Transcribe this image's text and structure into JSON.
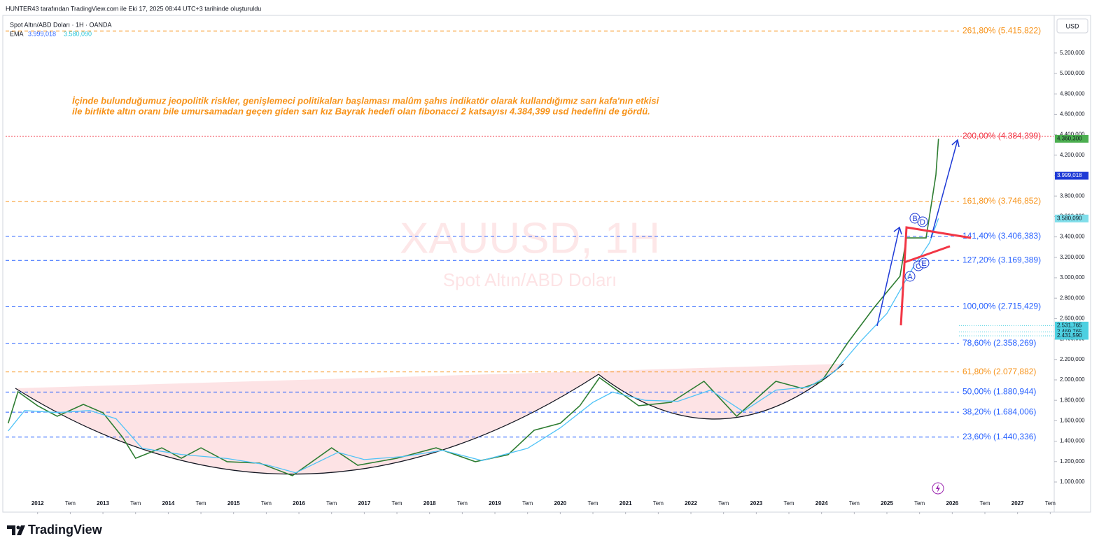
{
  "header": {
    "credit": "HUNTER43 tarafından TradingView.com ile Eki 17, 2025 08:44 UTC+3 tarihinde oluşturuldu",
    "symbol": "Spot Altın/ABD Doları · 1H · OANDA",
    "indicator": "EMA",
    "indicator_values": [
      "3.999,018",
      "3.580,090"
    ],
    "currency": "USD",
    "logo": "TradingView"
  },
  "chart_data": {
    "type": "line",
    "watermark": [
      "XAUUSD, 1H",
      "Spot Altın/ABD Doları"
    ],
    "annotation": [
      "İçinde bulunduğumuz jeopolitik riskler, genişlemeci politikaları başlaması malûm şahıs indikatör olarak kullandığımız sarı kafa'nın etkisi",
      "ile birlikte altın oranı bile umursamadan geçen giden sarı kız Bayrak hedefi olan fibonacci 2 katsayısı 4.384,399 usd hedefini de gördü."
    ],
    "pattern_labels": [
      "A",
      "B",
      "C",
      "D",
      "E"
    ],
    "xlim": [
      2011.51,
      2027.55
    ],
    "ylim": [
      719,
      5548
    ],
    "xticks": [
      2012,
      {
        "value": 2012.5,
        "label": "Tem"
      },
      2013,
      {
        "value": 2013.5,
        "label": "Tem"
      },
      2014,
      {
        "value": 2014.5,
        "label": "Tem"
      },
      2015,
      {
        "value": 2015.5,
        "label": "Tem"
      },
      2016,
      {
        "value": 2016.5,
        "label": "Tem"
      },
      2017,
      {
        "value": 2017.5,
        "label": "Tem"
      },
      2018,
      {
        "value": 2018.5,
        "label": "Tem"
      },
      2019,
      {
        "value": 2019.5,
        "label": "Tem"
      },
      2020,
      {
        "value": 2020.5,
        "label": "Tem"
      },
      2021,
      {
        "value": 2021.5,
        "label": "Tem"
      },
      2022,
      {
        "value": 2022.5,
        "label": "Tem"
      },
      2023,
      {
        "value": 2023.5,
        "label": "Tem"
      },
      2024,
      {
        "value": 2024.5,
        "label": "Tem"
      },
      2025,
      {
        "value": 2025.5,
        "label": "Tem"
      },
      2026,
      {
        "value": 2026.5,
        "label": "Tem"
      },
      2027,
      {
        "value": 2027.5,
        "label": "Tem"
      }
    ],
    "yticks": [
      {
        "value": 1000,
        "label": "1.000,000"
      },
      {
        "value": 1200,
        "label": "1.200,000"
      },
      {
        "value": 1400,
        "label": "1.400,000"
      },
      {
        "value": 1600,
        "label": "1.600,000"
      },
      {
        "value": 1800,
        "label": "1.800,000"
      },
      {
        "value": 2000,
        "label": "2.000,000"
      },
      {
        "value": 2200,
        "label": "2.200,000"
      },
      {
        "value": 2400,
        "label": "2.400,000"
      },
      {
        "value": 2600,
        "label": "2.600,000"
      },
      {
        "value": 2800,
        "label": "2.800,000"
      },
      {
        "value": 3000,
        "label": "3.000,000"
      },
      {
        "value": 3200,
        "label": "3.200,000"
      },
      {
        "value": 3400,
        "label": "3.400,000"
      },
      {
        "value": 3600,
        "label": "3.600,000"
      },
      {
        "value": 3800,
        "label": "3.800,000"
      },
      {
        "value": 4000,
        "label": "4.000,000"
      },
      {
        "value": 4200,
        "label": "4.200,000"
      },
      {
        "value": 4400,
        "label": "4.400,000"
      },
      {
        "value": 4600,
        "label": "4.600,000"
      },
      {
        "value": 4800,
        "label": "4.800,000"
      },
      {
        "value": 5000,
        "label": "5.000,000"
      },
      {
        "value": 5200,
        "label": "5.200,000"
      }
    ],
    "series": [
      {
        "color": "#2e7d32",
        "x": [
          2011.55,
          2011.7,
          2012.0,
          2012.3,
          2012.7,
          2013.0,
          2013.3,
          2013.5,
          2013.9,
          2014.2,
          2014.5,
          2014.9,
          2015.4,
          2015.9,
          2016.5,
          2016.9,
          2017.5,
          2018.1,
          2018.7,
          2019.2,
          2019.6,
          2020.0,
          2020.3,
          2020.6,
          2021.2,
          2021.7,
          2022.2,
          2022.7,
          2023.3,
          2023.7,
          2024.0,
          2024.4,
          2024.8,
          2025.2,
          2025.3,
          2025.6,
          2025.75,
          2025.79
        ],
        "values": [
          1575,
          1884,
          1747,
          1644,
          1760,
          1678,
          1438,
          1233,
          1335,
          1233,
          1335,
          1199,
          1185,
          1062,
          1335,
          1164,
          1233,
          1335,
          1199,
          1267,
          1507,
          1575,
          1747,
          2021,
          1747,
          1781,
          1986,
          1644,
          1986,
          1918,
          1986,
          2363,
          2705,
          3014,
          3390,
          3390,
          4007,
          4360.3
        ]
      },
      {
        "color": "#4fc3f7",
        "x": [
          2011.55,
          2011.8,
          2012.3,
          2012.8,
          2013.2,
          2013.6,
          2014.2,
          2014.9,
          2015.5,
          2015.95,
          2016.6,
          2017.0,
          2017.6,
          2018.2,
          2018.8,
          2019.5,
          2020.0,
          2020.5,
          2020.8,
          2021.3,
          2021.8,
          2022.3,
          2022.8,
          2023.3,
          2023.8,
          2024.2,
          2024.6,
          2025.0,
          2025.4,
          2025.65,
          2025.79
        ],
        "values": [
          1500,
          1700,
          1680,
          1700,
          1620,
          1330,
          1270,
          1230,
          1170,
          1090,
          1290,
          1220,
          1250,
          1310,
          1210,
          1330,
          1530,
          1780,
          1880,
          1800,
          1790,
          1900,
          1690,
          1900,
          1930,
          2080,
          2380,
          2650,
          3100,
          3340,
          3580.09
        ]
      }
    ],
    "fib_levels": [
      {
        "value": 5415.822,
        "label": "261,80% (5.415,822)",
        "color": "#f7931a"
      },
      {
        "value": 4384.399,
        "label": "200,00% (4.384,399)",
        "color": "#f23645"
      },
      {
        "value": 3746.852,
        "label": "161,80% (3.746,852)",
        "color": "#f7931a"
      },
      {
        "value": 3406.383,
        "label": "141,40% (3.406,383)",
        "color": "#2962ff"
      },
      {
        "value": 3169.389,
        "label": "127,20% (3.169,389)",
        "color": "#2962ff"
      },
      {
        "value": 2715.429,
        "label": "100,00% (2.715,429)",
        "color": "#2962ff"
      },
      {
        "value": 2358.269,
        "label": "78,60% (2.358,269)",
        "color": "#2962ff"
      },
      {
        "value": 2077.882,
        "label": "61,80% (2.077,882)",
        "color": "#f7931a"
      },
      {
        "value": 1880.944,
        "label": "50,00% (1.880,944)",
        "color": "#2962ff"
      },
      {
        "value": 1684.006,
        "label": "38,20% (1.684,006)",
        "color": "#2962ff"
      },
      {
        "value": 1440.336,
        "label": "23,60% (1.440,336)",
        "color": "#2962ff"
      }
    ],
    "price_labels": [
      {
        "value": 4360.3,
        "label": "4.360,300",
        "color": "#4caf50"
      },
      {
        "value": 3999.018,
        "label": "3.999,018",
        "color": "#1e3ad6"
      },
      {
        "value": 3580.09,
        "label": "3.580,090",
        "color": "#80deea"
      },
      {
        "value": 2531.765,
        "label": "2.531,765",
        "color": "#4dd0e1"
      },
      {
        "value": 2469.765,
        "label": "2.469,765",
        "color": "#4dd0e1"
      },
      {
        "value": 2431.59,
        "label": "2.431,590",
        "color": "#4dd0e1"
      }
    ]
  }
}
